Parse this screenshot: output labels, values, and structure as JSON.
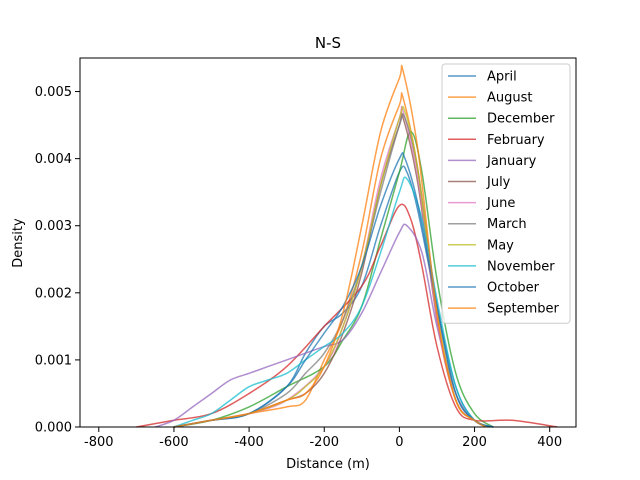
{
  "chart_data": {
    "type": "line",
    "title": "N-S",
    "xlabel": "Distance (m)",
    "ylabel": "Density",
    "xlim": [
      -850,
      470
    ],
    "ylim": [
      0,
      0.0055
    ],
    "xticks": [
      -800,
      -600,
      -400,
      -200,
      0,
      200,
      400
    ],
    "yticks": [
      0.0,
      0.001,
      0.002,
      0.003,
      0.004,
      0.005
    ],
    "ytick_labels": [
      "0.000",
      "0.001",
      "0.002",
      "0.003",
      "0.004",
      "0.005"
    ],
    "grid": false,
    "legend_position": "top-right",
    "series": [
      {
        "name": "April",
        "color": "#1f77b4",
        "points": [
          [
            -600,
            0
          ],
          [
            -500,
            0.0001
          ],
          [
            -400,
            0.0002
          ],
          [
            -300,
            0.0006
          ],
          [
            -250,
            0.0011
          ],
          [
            -200,
            0.0015
          ],
          [
            -150,
            0.0017
          ],
          [
            -100,
            0.0021
          ],
          [
            -50,
            0.003
          ],
          [
            0,
            0.0038
          ],
          [
            20,
            0.0038
          ],
          [
            50,
            0.0032
          ],
          [
            100,
            0.0018
          ],
          [
            150,
            0.0006
          ],
          [
            200,
            0.0001
          ],
          [
            250,
            0
          ]
        ]
      },
      {
        "name": "August",
        "color": "#ff7f0e",
        "points": [
          [
            -600,
            0
          ],
          [
            -500,
            0.0001
          ],
          [
            -400,
            0.0002
          ],
          [
            -300,
            0.0003
          ],
          [
            -250,
            0.0004
          ],
          [
            -200,
            0.001
          ],
          [
            -150,
            0.0016
          ],
          [
            -100,
            0.0026
          ],
          [
            -50,
            0.004
          ],
          [
            0,
            0.0048
          ],
          [
            10,
            0.0049
          ],
          [
            50,
            0.0038
          ],
          [
            100,
            0.0016
          ],
          [
            150,
            0.0004
          ],
          [
            200,
            0.0001
          ],
          [
            240,
            0
          ]
        ]
      },
      {
        "name": "December",
        "color": "#2ca02c",
        "points": [
          [
            -600,
            0
          ],
          [
            -500,
            0.0001
          ],
          [
            -400,
            0.0003
          ],
          [
            -300,
            0.0006
          ],
          [
            -200,
            0.0009
          ],
          [
            -150,
            0.0013
          ],
          [
            -100,
            0.0018
          ],
          [
            -50,
            0.0028
          ],
          [
            0,
            0.0038
          ],
          [
            30,
            0.0044
          ],
          [
            60,
            0.0038
          ],
          [
            100,
            0.0022
          ],
          [
            150,
            0.0008
          ],
          [
            200,
            0.0002
          ],
          [
            250,
            0
          ]
        ]
      },
      {
        "name": "February",
        "color": "#d62728",
        "points": [
          [
            -700,
            0
          ],
          [
            -600,
            0.0001
          ],
          [
            -500,
            0.0002
          ],
          [
            -400,
            0.0005
          ],
          [
            -300,
            0.0009
          ],
          [
            -200,
            0.0015
          ],
          [
            -100,
            0.0021
          ],
          [
            -50,
            0.0027
          ],
          [
            0,
            0.0033
          ],
          [
            30,
            0.0031
          ],
          [
            60,
            0.0024
          ],
          [
            100,
            0.0012
          ],
          [
            150,
            0.0003
          ],
          [
            200,
            0.0001
          ],
          [
            300,
            0.0001
          ],
          [
            420,
            0
          ]
        ]
      },
      {
        "name": "January",
        "color": "#9467bd",
        "points": [
          [
            -650,
            0
          ],
          [
            -600,
            0.0001
          ],
          [
            -550,
            0.0003
          ],
          [
            -500,
            0.0005
          ],
          [
            -450,
            0.0007
          ],
          [
            -400,
            0.0008
          ],
          [
            -350,
            0.0009
          ],
          [
            -300,
            0.001
          ],
          [
            -250,
            0.0011
          ],
          [
            -200,
            0.0012
          ],
          [
            -150,
            0.0013
          ],
          [
            -100,
            0.0017
          ],
          [
            -50,
            0.0023
          ],
          [
            0,
            0.0029
          ],
          [
            20,
            0.003
          ],
          [
            60,
            0.0026
          ],
          [
            100,
            0.0015
          ],
          [
            150,
            0.0005
          ],
          [
            200,
            0.0001
          ],
          [
            250,
            0
          ]
        ]
      },
      {
        "name": "July",
        "color": "#8c564b",
        "points": [
          [
            -600,
            0
          ],
          [
            -500,
            0.0001
          ],
          [
            -400,
            0.0002
          ],
          [
            -300,
            0.0004
          ],
          [
            -250,
            0.0005
          ],
          [
            -200,
            0.0008
          ],
          [
            -150,
            0.0014
          ],
          [
            -100,
            0.0023
          ],
          [
            -50,
            0.0036
          ],
          [
            0,
            0.0045
          ],
          [
            10,
            0.0046
          ],
          [
            50,
            0.0036
          ],
          [
            100,
            0.0016
          ],
          [
            150,
            0.0004
          ],
          [
            200,
            0.0001
          ],
          [
            240,
            0
          ]
        ]
      },
      {
        "name": "June",
        "color": "#e377c2",
        "points": [
          [
            -600,
            0
          ],
          [
            -500,
            0.0001
          ],
          [
            -400,
            0.0002
          ],
          [
            -300,
            0.0004
          ],
          [
            -200,
            0.0009
          ],
          [
            -150,
            0.0015
          ],
          [
            -100,
            0.0024
          ],
          [
            -50,
            0.0037
          ],
          [
            0,
            0.0046
          ],
          [
            10,
            0.0047
          ],
          [
            50,
            0.0037
          ],
          [
            100,
            0.0016
          ],
          [
            150,
            0.0004
          ],
          [
            200,
            0.0001
          ],
          [
            240,
            0
          ]
        ]
      },
      {
        "name": "March",
        "color": "#7f7f7f",
        "points": [
          [
            -600,
            0
          ],
          [
            -500,
            0.0001
          ],
          [
            -400,
            0.0002
          ],
          [
            -300,
            0.0005
          ],
          [
            -250,
            0.0008
          ],
          [
            -200,
            0.0011
          ],
          [
            -150,
            0.0016
          ],
          [
            -100,
            0.0024
          ],
          [
            -50,
            0.0035
          ],
          [
            0,
            0.0045
          ],
          [
            15,
            0.0046
          ],
          [
            50,
            0.0038
          ],
          [
            100,
            0.0018
          ],
          [
            150,
            0.0005
          ],
          [
            200,
            0.0001
          ],
          [
            250,
            0
          ]
        ]
      },
      {
        "name": "May",
        "color": "#bcbd22",
        "points": [
          [
            -600,
            0
          ],
          [
            -500,
            0.0001
          ],
          [
            -400,
            0.0002
          ],
          [
            -300,
            0.0004
          ],
          [
            -250,
            0.0006
          ],
          [
            -200,
            0.0009
          ],
          [
            -150,
            0.0015
          ],
          [
            -100,
            0.0024
          ],
          [
            -50,
            0.0036
          ],
          [
            0,
            0.0046
          ],
          [
            15,
            0.0047
          ],
          [
            50,
            0.0038
          ],
          [
            100,
            0.0017
          ],
          [
            150,
            0.0004
          ],
          [
            200,
            0.0001
          ],
          [
            240,
            0
          ]
        ]
      },
      {
        "name": "November",
        "color": "#17becf",
        "points": [
          [
            -600,
            0
          ],
          [
            -550,
            0.0001
          ],
          [
            -500,
            0.0002
          ],
          [
            -450,
            0.0004
          ],
          [
            -400,
            0.0006
          ],
          [
            -350,
            0.0007
          ],
          [
            -300,
            0.0008
          ],
          [
            -250,
            0.001
          ],
          [
            -200,
            0.0012
          ],
          [
            -150,
            0.0014
          ],
          [
            -100,
            0.0018
          ],
          [
            -50,
            0.0026
          ],
          [
            0,
            0.0035
          ],
          [
            20,
            0.0037
          ],
          [
            60,
            0.0031
          ],
          [
            100,
            0.0019
          ],
          [
            150,
            0.0006
          ],
          [
            200,
            0.0001
          ],
          [
            250,
            0
          ]
        ]
      },
      {
        "name": "October",
        "color": "#1f77b4",
        "points": [
          [
            -600,
            0
          ],
          [
            -500,
            0.0001
          ],
          [
            -400,
            0.0002
          ],
          [
            -300,
            0.0006
          ],
          [
            -250,
            0.001
          ],
          [
            -200,
            0.0014
          ],
          [
            -150,
            0.0018
          ],
          [
            -100,
            0.0024
          ],
          [
            -50,
            0.0033
          ],
          [
            0,
            0.004
          ],
          [
            15,
            0.004
          ],
          [
            50,
            0.0033
          ],
          [
            100,
            0.0018
          ],
          [
            150,
            0.0005
          ],
          [
            200,
            0.0001
          ],
          [
            250,
            0
          ]
        ]
      },
      {
        "name": "September",
        "color": "#ff7f0e",
        "points": [
          [
            -600,
            0
          ],
          [
            -500,
            0.0001
          ],
          [
            -400,
            0.0002
          ],
          [
            -300,
            0.0004
          ],
          [
            -250,
            0.0005
          ],
          [
            -200,
            0.0009
          ],
          [
            -150,
            0.0017
          ],
          [
            -100,
            0.003
          ],
          [
            -50,
            0.0044
          ],
          [
            0,
            0.0052
          ],
          [
            10,
            0.0053
          ],
          [
            50,
            0.0041
          ],
          [
            100,
            0.0017
          ],
          [
            150,
            0.0004
          ],
          [
            200,
            0.0001
          ],
          [
            230,
            0
          ]
        ]
      }
    ]
  }
}
